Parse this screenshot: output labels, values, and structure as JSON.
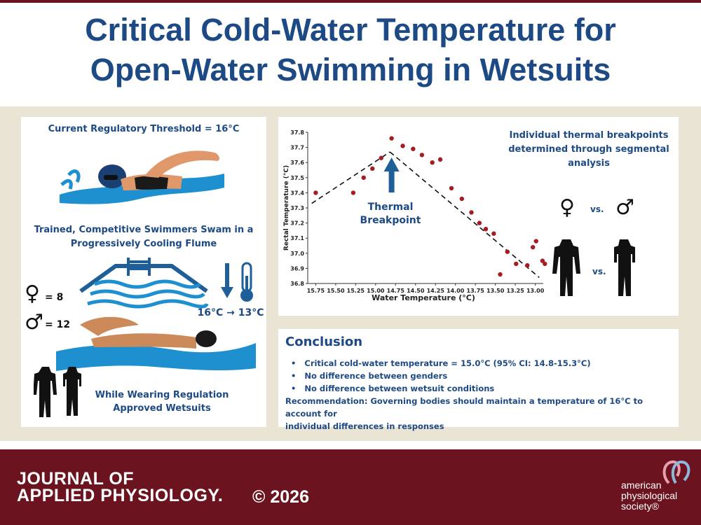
{
  "title": {
    "line1": "Critical Cold-Water Temperature for",
    "line2": "Open-Water Swimming in Wetsuits"
  },
  "left_panel": {
    "threshold": "Current Regulatory Threshold = 16°C",
    "swimmers_line1": "Trained, Competitive Swimmers Swam in a",
    "swimmers_line2": "Progressively Cooling Flume",
    "female_count": "= 8",
    "male_count": "= 12",
    "temp_range": "16°C → 13°C",
    "wetsuit_line1": "While Wearing Regulation",
    "wetsuit_line2": "Approved Wetsuits"
  },
  "chart_panel": {
    "breakpoint_label_line1": "Thermal",
    "breakpoint_label_line2": "Breakpoint",
    "side_text_line1": "Individual thermal breakpoints",
    "side_text_line2": "determined through segmental",
    "side_text_line3": "analysis",
    "vs_gender": "vs.",
    "vs_suit": "vs."
  },
  "chart_data": {
    "type": "scatter",
    "xlabel": "Water Temperature (°C)",
    "ylabel": "Rectal Temperature (°C)",
    "x_reversed": true,
    "xlim": [
      15.85,
      12.9
    ],
    "ylim": [
      36.8,
      37.8
    ],
    "x_ticks": [
      "15.75",
      "15.50",
      "15.25",
      "15.00",
      "14.75",
      "14.50",
      "14.25",
      "14.00",
      "13.75",
      "13.50",
      "13.25",
      "13.00"
    ],
    "y_ticks": [
      "37.8",
      "37.7",
      "37.6",
      "37.5",
      "37.4",
      "37.3",
      "37.2",
      "37.1",
      "37.0",
      "36.9",
      "36.8"
    ],
    "points": [
      {
        "x": 15.75,
        "y": 37.4
      },
      {
        "x": 15.28,
        "y": 37.4
      },
      {
        "x": 15.15,
        "y": 37.5
      },
      {
        "x": 15.04,
        "y": 37.56
      },
      {
        "x": 14.93,
        "y": 37.63
      },
      {
        "x": 14.8,
        "y": 37.76
      },
      {
        "x": 14.66,
        "y": 37.71
      },
      {
        "x": 14.53,
        "y": 37.69
      },
      {
        "x": 14.42,
        "y": 37.65
      },
      {
        "x": 14.29,
        "y": 37.6
      },
      {
        "x": 14.19,
        "y": 37.62
      },
      {
        "x": 14.05,
        "y": 37.43
      },
      {
        "x": 13.92,
        "y": 37.36
      },
      {
        "x": 13.8,
        "y": 37.27
      },
      {
        "x": 13.7,
        "y": 37.2
      },
      {
        "x": 13.62,
        "y": 37.16
      },
      {
        "x": 13.52,
        "y": 37.13
      },
      {
        "x": 13.44,
        "y": 36.86
      },
      {
        "x": 13.35,
        "y": 37.01
      },
      {
        "x": 13.24,
        "y": 36.93
      },
      {
        "x": 13.1,
        "y": 36.92
      },
      {
        "x": 13.03,
        "y": 37.04
      },
      {
        "x": 12.99,
        "y": 37.08
      },
      {
        "x": 12.91,
        "y": 36.95
      },
      {
        "x": 12.88,
        "y": 36.93
      }
    ],
    "fit_lines": [
      {
        "x1": 15.8,
        "y1": 37.33,
        "x2": 14.82,
        "y2": 37.67
      },
      {
        "x1": 14.82,
        "y1": 37.67,
        "x2": 12.95,
        "y2": 36.84
      }
    ],
    "breakpoint_x": 14.8
  },
  "conclusion": {
    "heading": "Conclusion",
    "bullets": [
      "Critical cold-water temperature = 15.0°C (95% CI: 14.8-15.3°C)",
      "No difference between genders",
      "No difference between wetsuit conditions"
    ],
    "recommendation_line1": "Recommendation: Governing bodies should maintain a temperature of 16°C to account for",
    "recommendation_line2": "individual differences in responses"
  },
  "footer": {
    "journal_line1": "JOURNAL OF",
    "journal_line2": "APPLIED PHYSIOLOGY.",
    "copyright": "© 2026",
    "aps_line1": "american",
    "aps_line2": "physiological",
    "aps_line3": "society®"
  },
  "colors": {
    "navy": "#1d4a84",
    "burgundy": "#6b1420",
    "tan": "#e9e4d4",
    "marker": "#a31d22",
    "water": "#1e8fcf"
  }
}
